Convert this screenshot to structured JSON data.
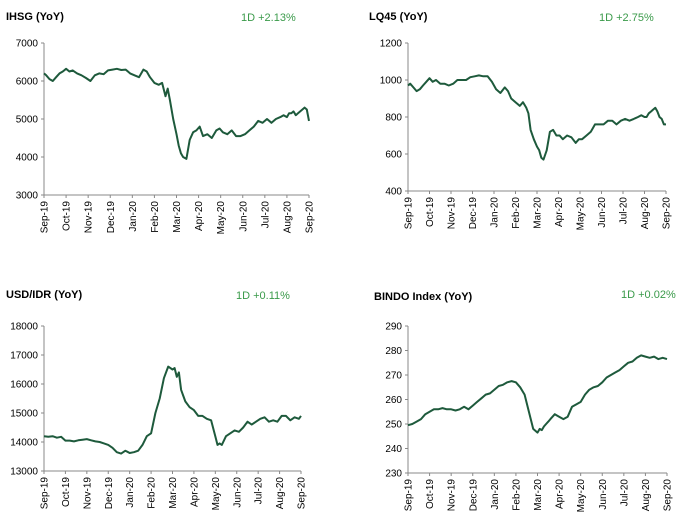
{
  "chart_data": [
    {
      "type": "line",
      "title": "IHSG (YoY)",
      "change_label": "1D +2.13%",
      "ylim": [
        3000,
        7000
      ],
      "yticks": [
        3000,
        4000,
        5000,
        6000,
        7000
      ],
      "x_tick_labels": [
        "Sep-19",
        "Oct-19",
        "Nov-19",
        "Dec-19",
        "Jan-20",
        "Feb-20",
        "Mar-20",
        "Apr-20",
        "May-20",
        "Jun-20",
        "Jul-20",
        "Aug-20",
        "Sep-20"
      ],
      "grid": false,
      "line_color": "#1e5a3c",
      "series": [
        {
          "x": [
            0,
            0.1,
            0.25,
            0.4,
            0.55,
            0.7,
            0.85,
            1.0,
            1.15,
            1.3,
            1.5,
            1.7,
            1.9,
            2.1,
            2.3,
            2.5,
            2.7,
            2.9,
            3.1,
            3.3,
            3.5,
            3.7,
            3.9,
            4.1,
            4.3,
            4.5,
            4.65,
            4.8,
            5.0,
            5.2,
            5.35,
            5.5,
            5.6,
            5.7,
            5.85,
            6.0,
            6.1,
            6.2,
            6.3,
            6.45,
            6.6,
            6.75,
            6.9,
            7.05,
            7.2,
            7.4,
            7.6,
            7.8,
            7.95,
            8.1,
            8.3,
            8.5,
            8.7,
            8.9,
            9.1,
            9.3,
            9.5,
            9.7,
            9.9,
            10.1,
            10.3,
            10.5,
            10.7,
            10.85,
            11.0,
            11.1,
            11.2,
            11.3,
            11.4,
            11.5,
            11.6,
            11.7,
            11.8,
            11.9,
            12.0
          ],
          "values": [
            6200,
            6150,
            6050,
            6000,
            6100,
            6200,
            6250,
            6320,
            6250,
            6280,
            6200,
            6150,
            6080,
            6000,
            6150,
            6200,
            6180,
            6280,
            6300,
            6320,
            6290,
            6300,
            6200,
            6150,
            6100,
            6300,
            6250,
            6100,
            5950,
            5900,
            5950,
            5600,
            5800,
            5500,
            5000,
            4600,
            4300,
            4100,
            4000,
            3950,
            4450,
            4650,
            4700,
            4800,
            4550,
            4600,
            4500,
            4700,
            4750,
            4650,
            4600,
            4700,
            4550,
            4550,
            4600,
            4700,
            4800,
            4950,
            4900,
            5000,
            4900,
            5000,
            5050,
            5100,
            5050,
            5150,
            5150,
            5200,
            5100,
            5150,
            5200,
            5250,
            5300,
            5250,
            4950
          ]
        }
      ]
    },
    {
      "type": "line",
      "title": "LQ45 (YoY)",
      "change_label": "1D +2.75%",
      "ylim": [
        400,
        1200
      ],
      "yticks": [
        400,
        600,
        800,
        1000,
        1200
      ],
      "x_tick_labels": [
        "Sep-19",
        "Oct-19",
        "Nov-19",
        "Dec-19",
        "Jan-20",
        "Feb-20",
        "Mar-20",
        "Apr-20",
        "May-20",
        "Jun-20",
        "Jul-20",
        "Aug-20",
        "Sep-20"
      ],
      "grid": false,
      "line_color": "#1e5a3c",
      "series": [
        {
          "x": [
            0,
            0.1,
            0.25,
            0.4,
            0.55,
            0.7,
            0.85,
            1.0,
            1.15,
            1.3,
            1.5,
            1.7,
            1.9,
            2.1,
            2.3,
            2.5,
            2.7,
            2.9,
            3.1,
            3.3,
            3.5,
            3.7,
            3.9,
            4.1,
            4.3,
            4.5,
            4.65,
            4.8,
            5.0,
            5.2,
            5.35,
            5.5,
            5.6,
            5.7,
            5.85,
            6.0,
            6.1,
            6.2,
            6.3,
            6.45,
            6.6,
            6.75,
            6.9,
            7.05,
            7.2,
            7.4,
            7.6,
            7.8,
            7.95,
            8.1,
            8.3,
            8.5,
            8.7,
            8.9,
            9.1,
            9.3,
            9.5,
            9.7,
            9.9,
            10.1,
            10.3,
            10.5,
            10.7,
            10.85,
            11.0,
            11.1,
            11.2,
            11.3,
            11.4,
            11.5,
            11.6,
            11.7,
            11.8,
            11.9,
            12.0
          ],
          "values": [
            970,
            980,
            960,
            940,
            950,
            970,
            990,
            1010,
            990,
            1000,
            980,
            980,
            970,
            980,
            1000,
            1000,
            1000,
            1015,
            1020,
            1025,
            1020,
            1020,
            990,
            950,
            930,
            960,
            940,
            900,
            880,
            860,
            880,
            850,
            820,
            730,
            680,
            640,
            620,
            580,
            570,
            620,
            720,
            730,
            700,
            700,
            680,
            700,
            690,
            660,
            680,
            680,
            700,
            720,
            760,
            760,
            760,
            780,
            780,
            760,
            780,
            790,
            780,
            790,
            800,
            810,
            800,
            800,
            820,
            830,
            840,
            850,
            830,
            800,
            790,
            760,
            760
          ]
        }
      ]
    },
    {
      "type": "line",
      "title": "USD/IDR  (YoY)",
      "change_label": "1D +0.11%",
      "ylim": [
        13000,
        18000
      ],
      "yticks": [
        13000,
        14000,
        15000,
        16000,
        17000,
        18000
      ],
      "x_tick_labels": [
        "Sep-19",
        "Oct-19",
        "Nov-19",
        "Dec-19",
        "Jan-20",
        "Feb-20",
        "Mar-20",
        "Apr-20",
        "May-20",
        "Jun-20",
        "Jul-20",
        "Aug-20",
        "Sep-20"
      ],
      "grid": false,
      "line_color": "#1e5a3c",
      "series": [
        {
          "x": [
            0,
            0.2,
            0.4,
            0.6,
            0.8,
            1.0,
            1.2,
            1.4,
            1.6,
            1.8,
            2.0,
            2.2,
            2.4,
            2.6,
            2.8,
            3.0,
            3.2,
            3.4,
            3.6,
            3.8,
            4.0,
            4.2,
            4.4,
            4.6,
            4.8,
            5.0,
            5.2,
            5.4,
            5.6,
            5.8,
            6.0,
            6.1,
            6.2,
            6.3,
            6.4,
            6.5,
            6.6,
            6.8,
            7.0,
            7.2,
            7.4,
            7.6,
            7.8,
            8.0,
            8.1,
            8.2,
            8.3,
            8.5,
            8.7,
            8.9,
            9.1,
            9.3,
            9.5,
            9.7,
            9.9,
            10.1,
            10.3,
            10.5,
            10.7,
            10.9,
            11.1,
            11.3,
            11.5,
            11.7,
            11.9,
            12.0
          ],
          "values": [
            14200,
            14180,
            14200,
            14150,
            14180,
            14050,
            14050,
            14020,
            14060,
            14080,
            14100,
            14060,
            14020,
            14000,
            13950,
            13900,
            13800,
            13650,
            13600,
            13700,
            13620,
            13650,
            13700,
            13900,
            14200,
            14300,
            15000,
            15500,
            16200,
            16600,
            16500,
            16550,
            16250,
            16400,
            15800,
            15600,
            15400,
            15200,
            15100,
            14900,
            14900,
            14800,
            14750,
            14200,
            13900,
            13950,
            13900,
            14200,
            14300,
            14400,
            14350,
            14500,
            14700,
            14600,
            14700,
            14800,
            14850,
            14700,
            14750,
            14700,
            14900,
            14900,
            14750,
            14850,
            14800,
            14900
          ]
        }
      ]
    },
    {
      "type": "line",
      "title": "BINDO Index (YoY)",
      "change_label": "1D +0.02%",
      "ylim": [
        230,
        290
      ],
      "yticks": [
        230,
        240,
        250,
        260,
        270,
        280,
        290
      ],
      "x_tick_labels": [
        "Sep-19",
        "Oct-19",
        "Nov-19",
        "Dec-19",
        "Jan-20",
        "Feb-20",
        "Mar-20",
        "Apr-20",
        "May-20",
        "Jun-20",
        "Jul-20",
        "Aug-20",
        "Sep-20"
      ],
      "grid": false,
      "line_color": "#1e5a3c",
      "series": [
        {
          "x": [
            0,
            0.2,
            0.4,
            0.6,
            0.8,
            1.0,
            1.2,
            1.4,
            1.6,
            1.8,
            2.0,
            2.2,
            2.4,
            2.6,
            2.8,
            3.0,
            3.2,
            3.4,
            3.6,
            3.8,
            4.0,
            4.2,
            4.4,
            4.6,
            4.8,
            5.0,
            5.2,
            5.4,
            5.6,
            5.8,
            6.0,
            6.1,
            6.2,
            6.3,
            6.4,
            6.5,
            6.6,
            6.8,
            7.0,
            7.2,
            7.4,
            7.6,
            7.8,
            8.0,
            8.2,
            8.4,
            8.6,
            8.8,
            9.0,
            9.2,
            9.4,
            9.6,
            9.8,
            10.0,
            10.2,
            10.4,
            10.6,
            10.8,
            11.0,
            11.2,
            11.4,
            11.6,
            11.8,
            12.0
          ],
          "values": [
            249.5,
            250.0,
            251.0,
            252.0,
            254.0,
            255.0,
            256.0,
            256.0,
            256.5,
            256.0,
            256.0,
            255.5,
            256.0,
            257.0,
            256.0,
            257.5,
            259.0,
            260.5,
            262.0,
            262.5,
            264.0,
            265.5,
            266.0,
            267.0,
            267.5,
            267.0,
            265.0,
            262.0,
            255.0,
            248.0,
            246.5,
            248.0,
            247.5,
            249.0,
            250.0,
            251.0,
            252.0,
            254.0,
            253.0,
            252.0,
            253.0,
            257.0,
            258.0,
            259.0,
            262.0,
            264.0,
            265.0,
            265.5,
            267.0,
            269.0,
            270.0,
            271.0,
            272.0,
            273.5,
            275.0,
            275.5,
            277.0,
            278.0,
            277.5,
            277.0,
            277.5,
            276.5,
            277.0,
            276.5
          ]
        }
      ]
    }
  ]
}
